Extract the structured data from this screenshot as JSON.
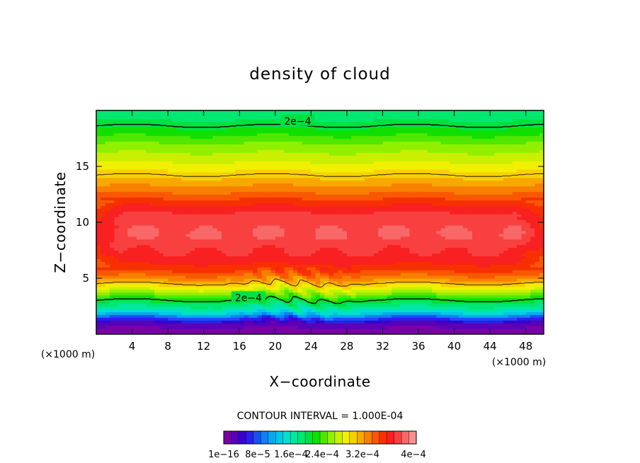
{
  "chart_data": {
    "type": "heatmap",
    "title": "density of cloud",
    "xlabel": "X−coordinate",
    "ylabel": "Z−coordinate",
    "x_unit": "(×1000 m)",
    "y_unit": "(×1000 m)",
    "xlim": [
      0,
      50
    ],
    "ylim": [
      0,
      20
    ],
    "x_ticks": [
      "4",
      "8",
      "12",
      "16",
      "20",
      "24",
      "28",
      "32",
      "36",
      "40",
      "44",
      "48"
    ],
    "x_tick_values": [
      4,
      8,
      12,
      16,
      20,
      24,
      28,
      32,
      36,
      40,
      44,
      48
    ],
    "y_ticks": [
      "5",
      "10",
      "15"
    ],
    "y_tick_values": [
      5,
      10,
      15
    ],
    "contour_interval_text": "CONTOUR INTERVAL = 1.000E-04",
    "contour_labels": [
      {
        "text": "2e−4",
        "x": 22.5,
        "z": 19.0
      },
      {
        "text": "2e−4",
        "x": 17.0,
        "z": 3.2
      }
    ],
    "colorbar": {
      "labels": [
        "1e−16",
        "8e−5",
        "1.6e−4",
        "2.4e−4",
        "3.2e−4",
        "4e−4"
      ],
      "min": 0,
      "max": 0.00044,
      "colors": [
        "#7a00a8",
        "#5a00b8",
        "#3a00d0",
        "#2a20e8",
        "#1850f0",
        "#1080f0",
        "#08a8f0",
        "#00c8e8",
        "#00e0d0",
        "#00e8a0",
        "#00e870",
        "#00e040",
        "#10e000",
        "#50e800",
        "#90f000",
        "#c8f000",
        "#f0f000",
        "#f8d000",
        "#f8a800",
        "#f88000",
        "#f85800",
        "#f83000",
        "#f82020",
        "#f84040",
        "#f86868",
        "#f89090"
      ],
      "fill_levels_min": 0,
      "fill_levels_step": 1.7e-05
    },
    "z_profile_km": [
      0,
      1,
      1.5,
      2,
      3,
      4,
      5,
      6,
      8,
      9,
      11,
      13,
      15,
      17,
      19,
      20
    ],
    "z_profile_density": [
      0.0,
      3e-05,
      8e-05,
      0.00014,
      0.0002,
      0.00027,
      0.00033,
      0.00037,
      0.0004,
      0.00041,
      0.00039,
      0.00033,
      0.00028,
      0.00024,
      0.00019,
      0.00017
    ],
    "contour_line_densities": [
      0.0002,
      0.0003
    ]
  }
}
